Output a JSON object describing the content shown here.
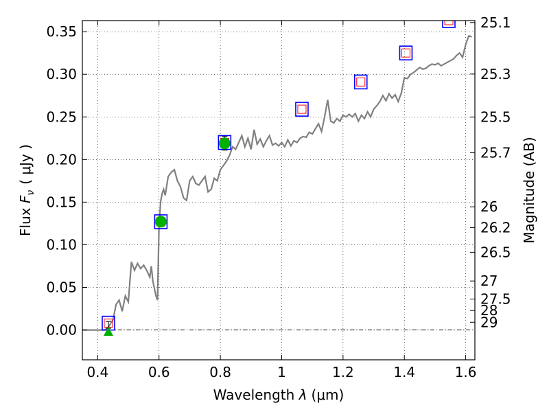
{
  "chart_data": {
    "type": "scatter",
    "xlabel_prefix": "Wavelength ",
    "xlabel_symbol": "λ",
    "xlabel_unit": "(μm)",
    "ylabel_prefix": "Flux ",
    "ylabel_symbol": "F",
    "ylabel_subscript": "ν",
    "ylabel_unit": "( μJy )",
    "y2label": "Magnitude (AB)",
    "xlim": [
      0.35,
      1.63
    ],
    "ylim": [
      -0.035,
      0.363
    ],
    "x_ticks": [
      0.4,
      0.6,
      0.8,
      1.0,
      1.2,
      1.4,
      1.6
    ],
    "x_tick_labels": [
      "0.4",
      "0.6",
      "0.8",
      "1",
      "1.2",
      "1.4",
      "1.6"
    ],
    "y_ticks": [
      0.0,
      0.05,
      0.1,
      0.15,
      0.2,
      0.25,
      0.3,
      0.35
    ],
    "y_tick_labels": [
      "0.00",
      "0.05",
      "0.10",
      "0.15",
      "0.20",
      "0.25",
      "0.30",
      "0.35"
    ],
    "mag_ticks": [
      {
        "flux": 0.3607,
        "label": "25.1"
      },
      {
        "flux": 0.3003,
        "label": "25.3"
      },
      {
        "flux": 0.2499,
        "label": "25.5"
      },
      {
        "flux": 0.2079,
        "label": "25.7"
      },
      {
        "flux": 0.1445,
        "label": "26"
      },
      {
        "flux": 0.1202,
        "label": "26.2"
      },
      {
        "flux": 0.0912,
        "label": "26.5"
      },
      {
        "flux": 0.0575,
        "label": "27"
      },
      {
        "flux": 0.0363,
        "label": "27.5"
      },
      {
        "flux": 0.0229,
        "label": "28"
      },
      {
        "flux": 0.0091,
        "label": "29"
      }
    ],
    "grid": true,
    "zero_line": true,
    "colors": {
      "model_sed": "#808080",
      "model_box": "#0000ff",
      "model_square": "#ff0000",
      "detection": "#00b000",
      "upper_limit": "#00b000",
      "errorbar": "#000000"
    },
    "model_sed": {
      "x": [
        0.35,
        0.42,
        0.43,
        0.45,
        0.46,
        0.47,
        0.48,
        0.49,
        0.5,
        0.51,
        0.52,
        0.53,
        0.54,
        0.55,
        0.56,
        0.57,
        0.575,
        0.58,
        0.59,
        0.595,
        0.6,
        0.605,
        0.61,
        0.615,
        0.62,
        0.63,
        0.64,
        0.65,
        0.66,
        0.67,
        0.68,
        0.69,
        0.7,
        0.71,
        0.72,
        0.73,
        0.74,
        0.75,
        0.76,
        0.77,
        0.78,
        0.79,
        0.8,
        0.81,
        0.82,
        0.83,
        0.84,
        0.85,
        0.86,
        0.87,
        0.88,
        0.89,
        0.9,
        0.91,
        0.92,
        0.93,
        0.94,
        0.95,
        0.96,
        0.97,
        0.98,
        0.99,
        1.0,
        1.01,
        1.02,
        1.03,
        1.04,
        1.05,
        1.06,
        1.07,
        1.08,
        1.09,
        1.1,
        1.11,
        1.12,
        1.13,
        1.14,
        1.15,
        1.16,
        1.17,
        1.18,
        1.19,
        1.2,
        1.21,
        1.22,
        1.23,
        1.24,
        1.25,
        1.26,
        1.27,
        1.28,
        1.29,
        1.3,
        1.31,
        1.32,
        1.33,
        1.34,
        1.35,
        1.36,
        1.37,
        1.38,
        1.39,
        1.4,
        1.41,
        1.42,
        1.43,
        1.44,
        1.45,
        1.46,
        1.47,
        1.48,
        1.49,
        1.5,
        1.51,
        1.52,
        1.53,
        1.54,
        1.55,
        1.56,
        1.57,
        1.58,
        1.59,
        1.6,
        1.61,
        1.62
      ],
      "y": [
        0.0,
        0.0,
        0.001,
        0.012,
        0.03,
        0.035,
        0.022,
        0.04,
        0.033,
        0.08,
        0.07,
        0.078,
        0.072,
        0.076,
        0.07,
        0.062,
        0.075,
        0.057,
        0.04,
        0.035,
        0.12,
        0.15,
        0.16,
        0.165,
        0.158,
        0.18,
        0.185,
        0.188,
        0.175,
        0.168,
        0.155,
        0.152,
        0.175,
        0.18,
        0.172,
        0.17,
        0.175,
        0.18,
        0.162,
        0.165,
        0.178,
        0.175,
        0.188,
        0.193,
        0.198,
        0.205,
        0.215,
        0.212,
        0.22,
        0.228,
        0.215,
        0.225,
        0.212,
        0.235,
        0.218,
        0.224,
        0.215,
        0.222,
        0.228,
        0.217,
        0.219,
        0.216,
        0.22,
        0.215,
        0.223,
        0.216,
        0.222,
        0.22,
        0.225,
        0.227,
        0.226,
        0.232,
        0.23,
        0.236,
        0.242,
        0.233,
        0.25,
        0.27,
        0.245,
        0.243,
        0.248,
        0.245,
        0.252,
        0.25,
        0.253,
        0.25,
        0.254,
        0.245,
        0.252,
        0.248,
        0.256,
        0.25,
        0.259,
        0.263,
        0.268,
        0.275,
        0.269,
        0.277,
        0.272,
        0.276,
        0.268,
        0.278,
        0.296,
        0.295,
        0.3,
        0.302,
        0.305,
        0.308,
        0.306,
        0.307,
        0.31,
        0.312,
        0.311,
        0.313,
        0.31,
        0.312,
        0.314,
        0.316,
        0.318,
        0.322,
        0.325,
        0.32,
        0.335,
        0.345,
        0.344
      ]
    },
    "model_photometry": [
      {
        "x": 0.435,
        "y": 0.008
      },
      {
        "x": 0.606,
        "y": 0.127
      },
      {
        "x": 0.814,
        "y": 0.22
      },
      {
        "x": 1.066,
        "y": 0.259
      },
      {
        "x": 1.258,
        "y": 0.291
      },
      {
        "x": 1.405,
        "y": 0.325
      },
      {
        "x": 1.545,
        "y": 0.363
      }
    ],
    "detections": [
      {
        "x": 0.606,
        "y": 0.127,
        "yerr": 0.004
      },
      {
        "x": 0.814,
        "y": 0.219,
        "yerr": 0.008
      }
    ],
    "upper_limits": [
      {
        "x": 0.435,
        "y": -0.002
      }
    ],
    "limit_errorbar": {
      "x": 0.435,
      "ylow": 0.002,
      "yhigh": 0.01
    }
  }
}
